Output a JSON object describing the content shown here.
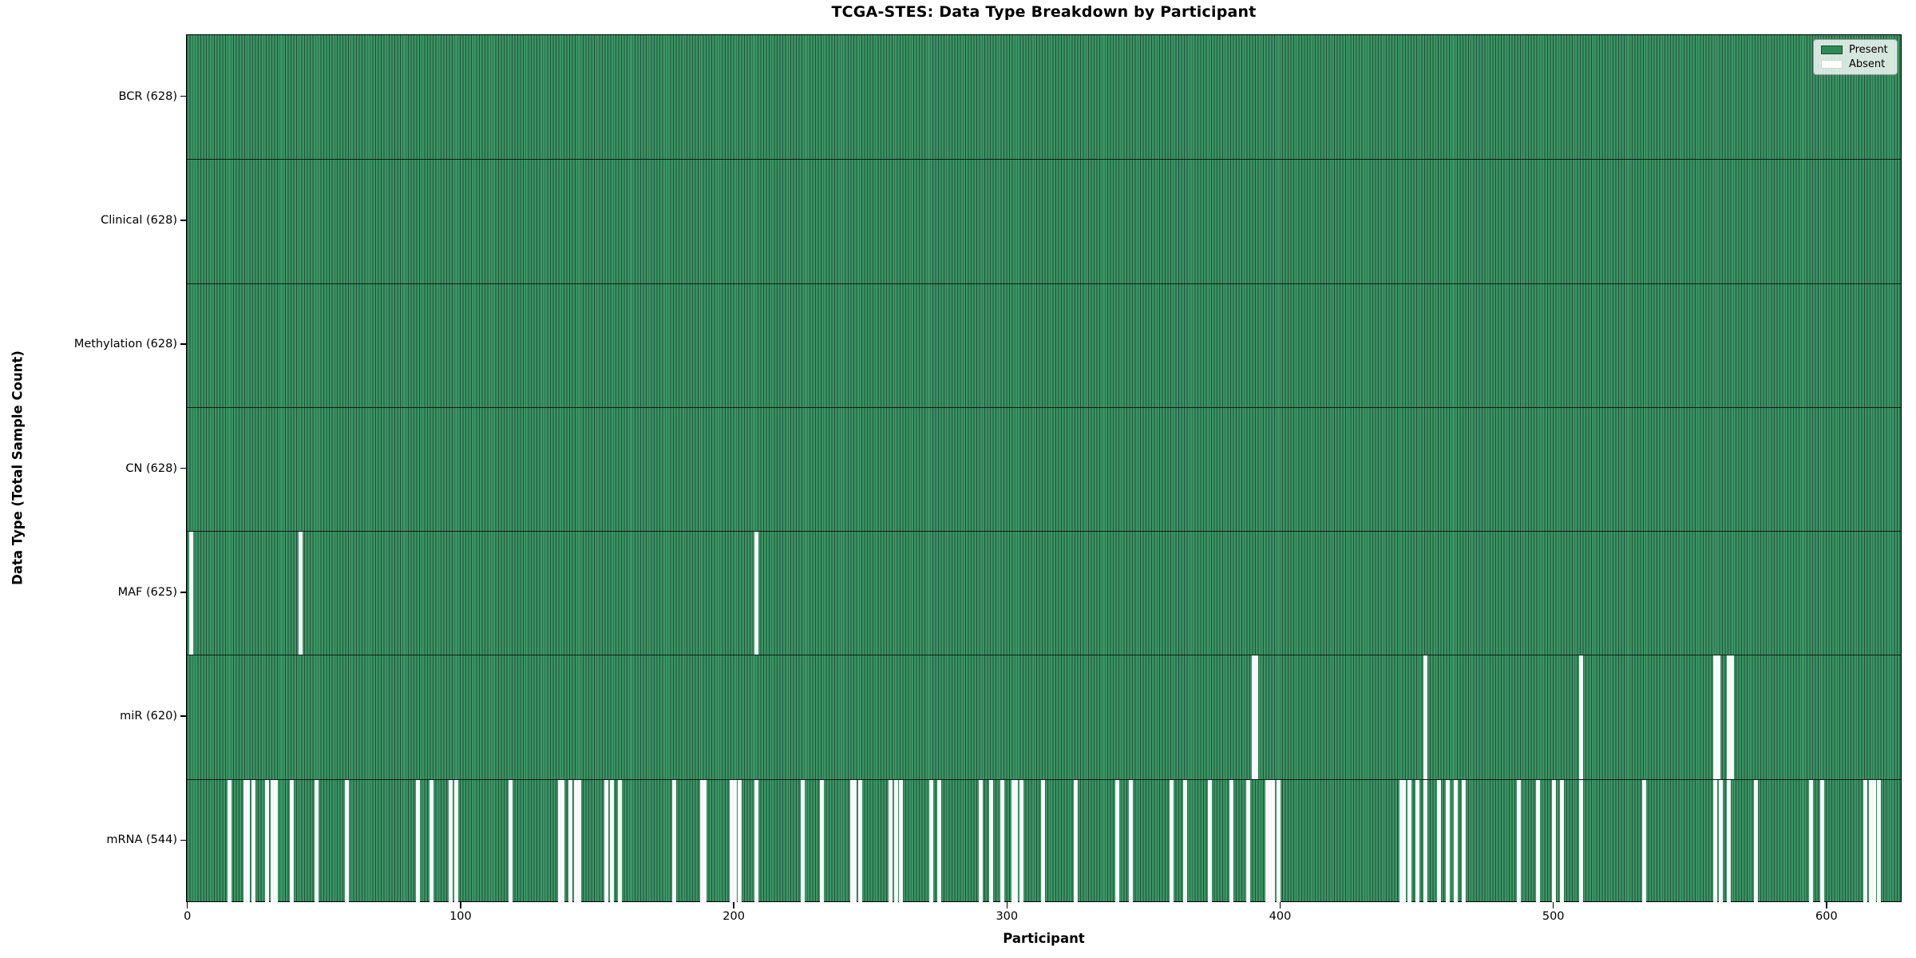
{
  "chart_data": {
    "type": "heatmap",
    "title": "TCGA-STES: Data Type Breakdown by Participant",
    "xlabel": "Participant",
    "ylabel": "Data Type (Total Sample Count)",
    "n_participants": 628,
    "xlim": [
      -0.5,
      627.5
    ],
    "x_ticks": [
      0,
      100,
      200,
      300,
      400,
      500,
      600
    ],
    "grid": false,
    "colors": {
      "present": "#2e8b57",
      "present_stripe_light": "#3b9565",
      "present_stripe_dark": "#1f5138",
      "absent": "#ffffff",
      "row_separator": "#0a0a0a"
    },
    "legend": {
      "position": "upper right",
      "items": [
        {
          "label": "Present",
          "color": "#2e8b57"
        },
        {
          "label": "Absent",
          "color": "#ffffff"
        }
      ]
    },
    "rows": [
      {
        "label": "BCR (628)",
        "data_type": "BCR",
        "present_count": 628,
        "absent_participants": []
      },
      {
        "label": "Clinical (628)",
        "data_type": "Clinical",
        "present_count": 628,
        "absent_participants": []
      },
      {
        "label": "Methylation (628)",
        "data_type": "Methylation",
        "present_count": 628,
        "absent_participants": []
      },
      {
        "label": "CN (628)",
        "data_type": "CN",
        "present_count": 628,
        "absent_participants": []
      },
      {
        "label": "MAF (625)",
        "data_type": "MAF",
        "present_count": 625,
        "absent_participants": [
          1,
          41,
          208
        ]
      },
      {
        "label": "miR (620)",
        "data_type": "miR",
        "present_count": 620,
        "absent_participants": [
          390,
          391,
          453,
          510,
          559,
          560,
          564,
          565
        ]
      },
      {
        "label": "mRNA (544)",
        "data_type": "mRNA",
        "present_count": 544,
        "absent_participants": [
          15,
          21,
          22,
          24,
          29,
          31,
          32,
          38,
          47,
          58,
          84,
          89,
          96,
          98,
          118,
          136,
          137,
          140,
          142,
          143,
          153,
          155,
          158,
          178,
          188,
          189,
          199,
          200,
          202,
          208,
          225,
          232,
          243,
          244,
          246,
          257,
          259,
          261,
          272,
          275,
          290,
          294,
          298,
          302,
          303,
          305,
          313,
          325,
          340,
          345,
          360,
          365,
          374,
          382,
          388,
          395,
          396,
          397,
          399,
          444,
          445,
          447,
          450,
          453,
          458,
          461,
          464,
          467,
          487,
          494,
          500,
          503,
          510,
          533,
          559,
          561,
          564,
          574,
          594,
          598,
          614,
          616,
          617,
          619
        ]
      }
    ]
  }
}
